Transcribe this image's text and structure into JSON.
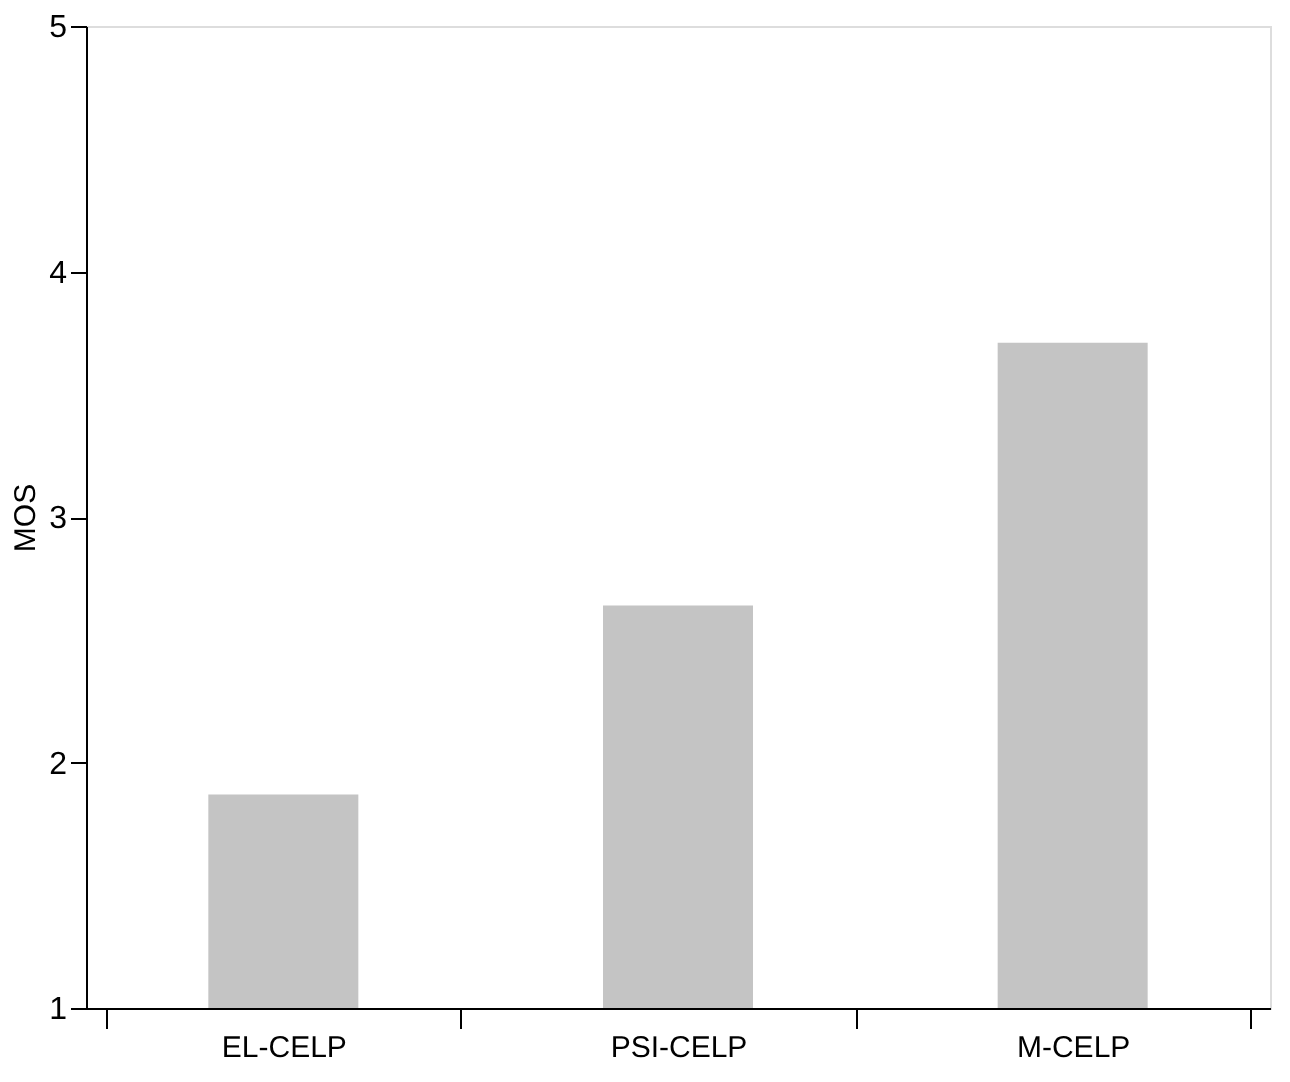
{
  "chart_data": {
    "type": "bar",
    "ylabel": "MOS",
    "categories": [
      "EL-CELP",
      "PSI-CELP",
      "M-CELP"
    ],
    "values": [
      1.87,
      2.64,
      3.71
    ],
    "color": "#c4c4c4",
    "ylim": [
      1,
      5
    ],
    "yticks": [
      1,
      2,
      3,
      4,
      5
    ],
    "grid": false
  }
}
